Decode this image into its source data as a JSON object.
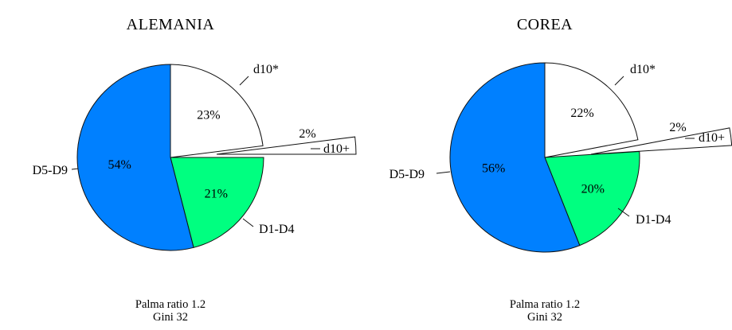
{
  "chart_data": [
    {
      "type": "pie",
      "title": "ALEMANIA",
      "slices": [
        {
          "label": "d10*",
          "value": 23,
          "pct_text": "23%",
          "color": "#ffffff"
        },
        {
          "label": "d10+",
          "value": 2,
          "pct_text": "2%",
          "color": "#ffffff",
          "exploded": true
        },
        {
          "label": "D1-D4",
          "value": 21,
          "pct_text": "21%",
          "color": "#00ff80"
        },
        {
          "label": "D5-D9",
          "value": 54,
          "pct_text": "54%",
          "color": "#0080ff"
        }
      ],
      "footnote": [
        "Palma ratio 1.2",
        "Gini 32"
      ]
    },
    {
      "type": "pie",
      "title": "COREA",
      "slices": [
        {
          "label": "d10*",
          "value": 22,
          "pct_text": "22%",
          "color": "#ffffff"
        },
        {
          "label": "d10+",
          "value": 2,
          "pct_text": "2%",
          "color": "#ffffff",
          "exploded": true
        },
        {
          "label": "D1-D4",
          "value": 20,
          "pct_text": "20%",
          "color": "#00ff80"
        },
        {
          "label": "D5-D9",
          "value": 56,
          "pct_text": "56%",
          "color": "#0080ff"
        }
      ],
      "footnote": [
        "Palma ratio 1.2",
        "Gini 32"
      ]
    }
  ]
}
